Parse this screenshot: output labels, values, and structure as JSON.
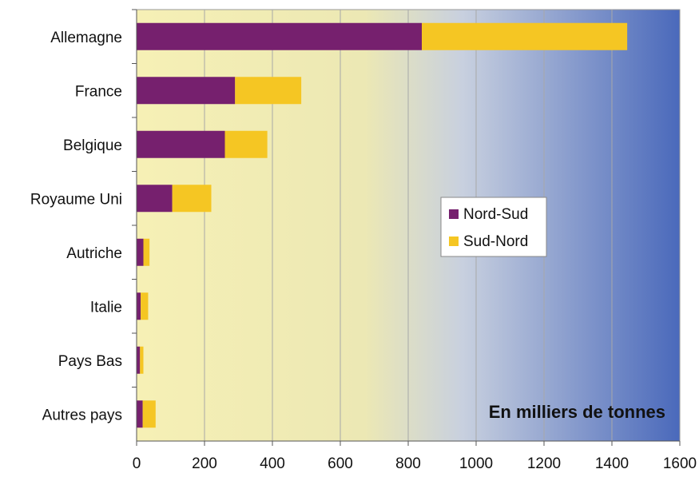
{
  "chart_data": {
    "type": "bar",
    "orientation": "horizontal",
    "stacked": true,
    "categories": [
      "Allemagne",
      "France",
      "Belgique",
      "Royaume Uni",
      "Autriche",
      "Italie",
      "Pays Bas",
      "Autres pays"
    ],
    "series": [
      {
        "name": "Nord-Sud",
        "color": "#76206e",
        "values": [
          840,
          290,
          260,
          105,
          20,
          12,
          10,
          18
        ]
      },
      {
        "name": "Sud-Nord",
        "color": "#f5c623",
        "values": [
          605,
          195,
          125,
          115,
          18,
          22,
          10,
          38
        ]
      }
    ],
    "xlim": [
      0,
      1600
    ],
    "xticks": [
      0,
      200,
      400,
      600,
      800,
      1000,
      1200,
      1400,
      1600
    ],
    "grid": true,
    "legend": "center-right",
    "annotation": "En milliers de tonnes",
    "background_gradient": [
      "#f6f0b8",
      "#4a6bbb"
    ]
  }
}
